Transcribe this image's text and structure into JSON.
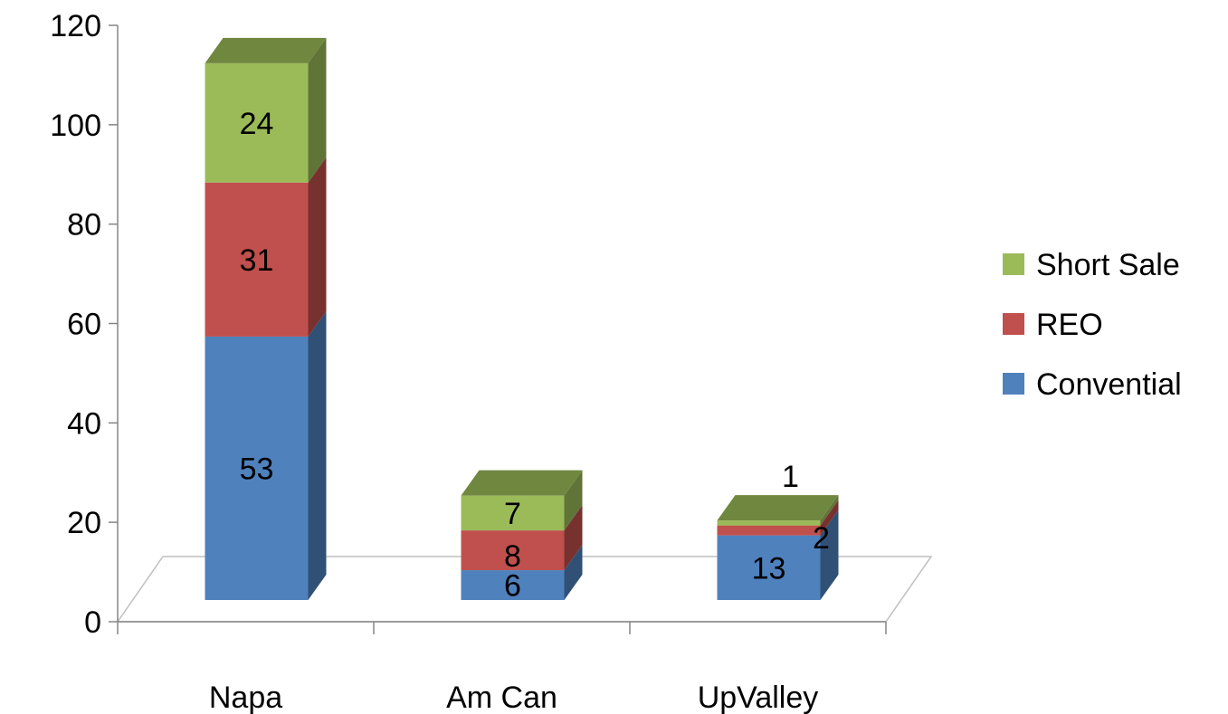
{
  "chart_data": {
    "type": "bar",
    "stacked": true,
    "three_d": true,
    "categories": [
      "Napa",
      "Am Can",
      "UpValley"
    ],
    "series": [
      {
        "name": "Convential",
        "color": "#4F81BD",
        "values": [
          53,
          6,
          13
        ],
        "labels": [
          "53",
          "6",
          "13"
        ]
      },
      {
        "name": "REO",
        "color": "#C0504D",
        "values": [
          31,
          8,
          2
        ],
        "labels": [
          "31",
          "8",
          "2"
        ]
      },
      {
        "name": "Short Sale",
        "color": "#9BBB59",
        "values": [
          24,
          7,
          1
        ],
        "labels": [
          "24",
          "7",
          "1"
        ]
      }
    ],
    "ylim": [
      0,
      120
    ],
    "yticks": [
      "0",
      "20",
      "40",
      "60",
      "80",
      "100",
      "120"
    ],
    "legend": {
      "position": "right",
      "entries": [
        "Short Sale",
        "REO",
        "Convential"
      ]
    },
    "grid": false,
    "title": "",
    "xlabel": "",
    "ylabel": ""
  }
}
